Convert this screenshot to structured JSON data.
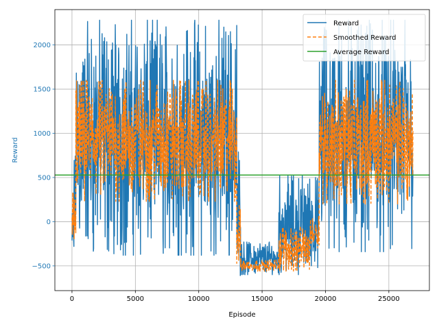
{
  "chart_data": {
    "type": "line",
    "xlabel": "Episode",
    "ylabel": "Reward",
    "xlim": [
      -1350,
      28200
    ],
    "ylim": [
      -780,
      2400
    ],
    "xticks": [
      0,
      5000,
      10000,
      15000,
      20000,
      25000
    ],
    "yticks": [
      -500,
      0,
      500,
      1000,
      1500,
      2000
    ],
    "grid": true,
    "legend_position": "top-right",
    "ylabel_color": "#1f77b4",
    "series": [
      {
        "name": "Reward",
        "style": "solid",
        "color": "#1f77b4",
        "segments": [
          {
            "x_start": 0,
            "x_end": 150,
            "min": -560,
            "max": 170
          },
          {
            "x_start": 150,
            "x_end": 300,
            "min": -300,
            "max": 750
          },
          {
            "x_start": 300,
            "x_end": 13000,
            "min": -380,
            "max": 2280
          },
          {
            "x_start": 13000,
            "x_end": 13300,
            "min": -610,
            "max": 800
          },
          {
            "x_start": 13300,
            "x_end": 16300,
            "min": -600,
            "max": -230
          },
          {
            "x_start": 16300,
            "x_end": 18800,
            "min": -600,
            "max": 520
          },
          {
            "x_start": 18800,
            "x_end": 19500,
            "min": -520,
            "max": 500
          },
          {
            "x_start": 19500,
            "x_end": 26900,
            "min": -340,
            "max": 2280
          }
        ]
      },
      {
        "name": "Smoothed Reward",
        "style": "dashed",
        "color": "#ff7f0e",
        "segments": [
          {
            "x_start": 0,
            "x_end": 300,
            "min": -380,
            "max": 350
          },
          {
            "x_start": 300,
            "x_end": 13000,
            "min": 230,
            "max": 1600
          },
          {
            "x_start": 13000,
            "x_end": 13300,
            "min": -560,
            "max": 200
          },
          {
            "x_start": 13300,
            "x_end": 16300,
            "min": -560,
            "max": -430
          },
          {
            "x_start": 16300,
            "x_end": 18800,
            "min": -560,
            "max": -50
          },
          {
            "x_start": 18800,
            "x_end": 19500,
            "min": -300,
            "max": 100
          },
          {
            "x_start": 19500,
            "x_end": 26900,
            "min": 200,
            "max": 1600
          }
        ]
      },
      {
        "name": "Average Reward",
        "style": "solid",
        "color": "#2ca02c",
        "constant": 528
      }
    ]
  }
}
